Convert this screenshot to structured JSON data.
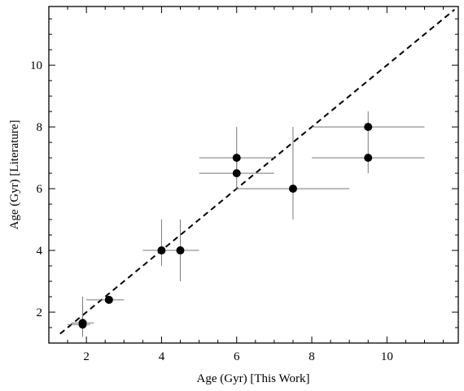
{
  "chart_data": {
    "type": "scatter",
    "title": "",
    "xlabel": "Age (Gyr) [This Work]",
    "ylabel": "Age (Gyr) [Literature]",
    "xlim": [
      1.0,
      11.9
    ],
    "ylim": [
      1.0,
      11.9
    ],
    "x_ticks": [
      2,
      4,
      6,
      8,
      10
    ],
    "y_ticks": [
      2,
      4,
      6,
      8,
      10
    ],
    "grid": false,
    "reference_line": {
      "label": "",
      "style": "dashed",
      "from": [
        1.3,
        1.3
      ],
      "to": [
        11.8,
        11.8
      ]
    },
    "points": [
      {
        "x": 1.9,
        "y": 1.6,
        "xerr": [
          0.4,
          0.2
        ],
        "yerr": [
          0.4,
          0.4
        ]
      },
      {
        "x": 1.9,
        "y": 1.65,
        "xerr": [
          0.3,
          0.3
        ],
        "yerr": [
          0.3,
          0.85
        ]
      },
      {
        "x": 2.6,
        "y": 2.4,
        "xerr": [
          0.6,
          0.4
        ],
        "yerr": [
          0.0,
          0.0
        ]
      },
      {
        "x": 4.0,
        "y": 4.0,
        "xerr": [
          0.5,
          0.5
        ],
        "yerr": [
          0.5,
          1.0
        ]
      },
      {
        "x": 4.5,
        "y": 4.0,
        "xerr": [
          0.5,
          0.5
        ],
        "yerr": [
          1.0,
          1.0
        ]
      },
      {
        "x": 6.0,
        "y": 7.0,
        "xerr": [
          1.0,
          1.0
        ],
        "yerr": [
          0.5,
          1.0
        ]
      },
      {
        "x": 6.0,
        "y": 6.5,
        "xerr": [
          1.0,
          1.0
        ],
        "yerr": [
          0.5,
          0.5
        ]
      },
      {
        "x": 7.5,
        "y": 6.0,
        "xerr": [
          1.5,
          1.5
        ],
        "yerr": [
          1.0,
          2.0
        ]
      },
      {
        "x": 9.5,
        "y": 8.0,
        "xerr": [
          1.5,
          1.5
        ],
        "yerr": [
          0.5,
          0.5
        ]
      },
      {
        "x": 9.5,
        "y": 7.0,
        "xerr": [
          1.5,
          1.5
        ],
        "yerr": [
          0.5,
          0.5
        ]
      }
    ],
    "colors": {
      "points": "#000000",
      "errorbars": "#777777",
      "reference_line": "#000000"
    }
  }
}
